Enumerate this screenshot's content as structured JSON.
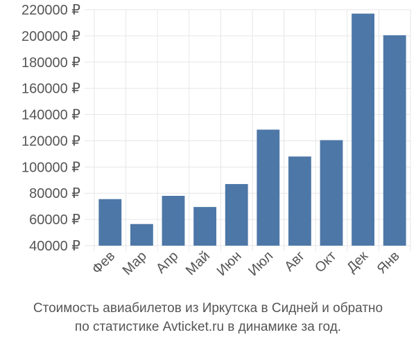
{
  "chart_data": {
    "type": "bar",
    "categories": [
      "Фев",
      "Мар",
      "Апр",
      "Май",
      "Июн",
      "Июл",
      "Авг",
      "Окт",
      "Дек",
      "Янв"
    ],
    "values": [
      75500,
      56500,
      78000,
      69500,
      87000,
      128500,
      108000,
      120500,
      217000,
      200500
    ],
    "ylim": [
      40000,
      220000
    ],
    "yticks": [
      40000,
      60000,
      80000,
      100000,
      120000,
      140000,
      160000,
      180000,
      200000,
      220000
    ],
    "ytick_labels": [
      "40000 ₽",
      "60000 ₽",
      "80000 ₽",
      "100000 ₽",
      "120000 ₽",
      "140000 ₽",
      "160000 ₽",
      "180000 ₽",
      "200000 ₽",
      "220000 ₽"
    ],
    "grid": true,
    "bar_color": "#4d77a7",
    "grid_color": "#e6e6e6",
    "title": "",
    "xlabel": "",
    "ylabel": ""
  },
  "caption": {
    "line1": "Стоимость авиабилетов из Иркутска в Сидней и обратно",
    "line2": "по статистике Avticket.ru в динамике за год."
  }
}
